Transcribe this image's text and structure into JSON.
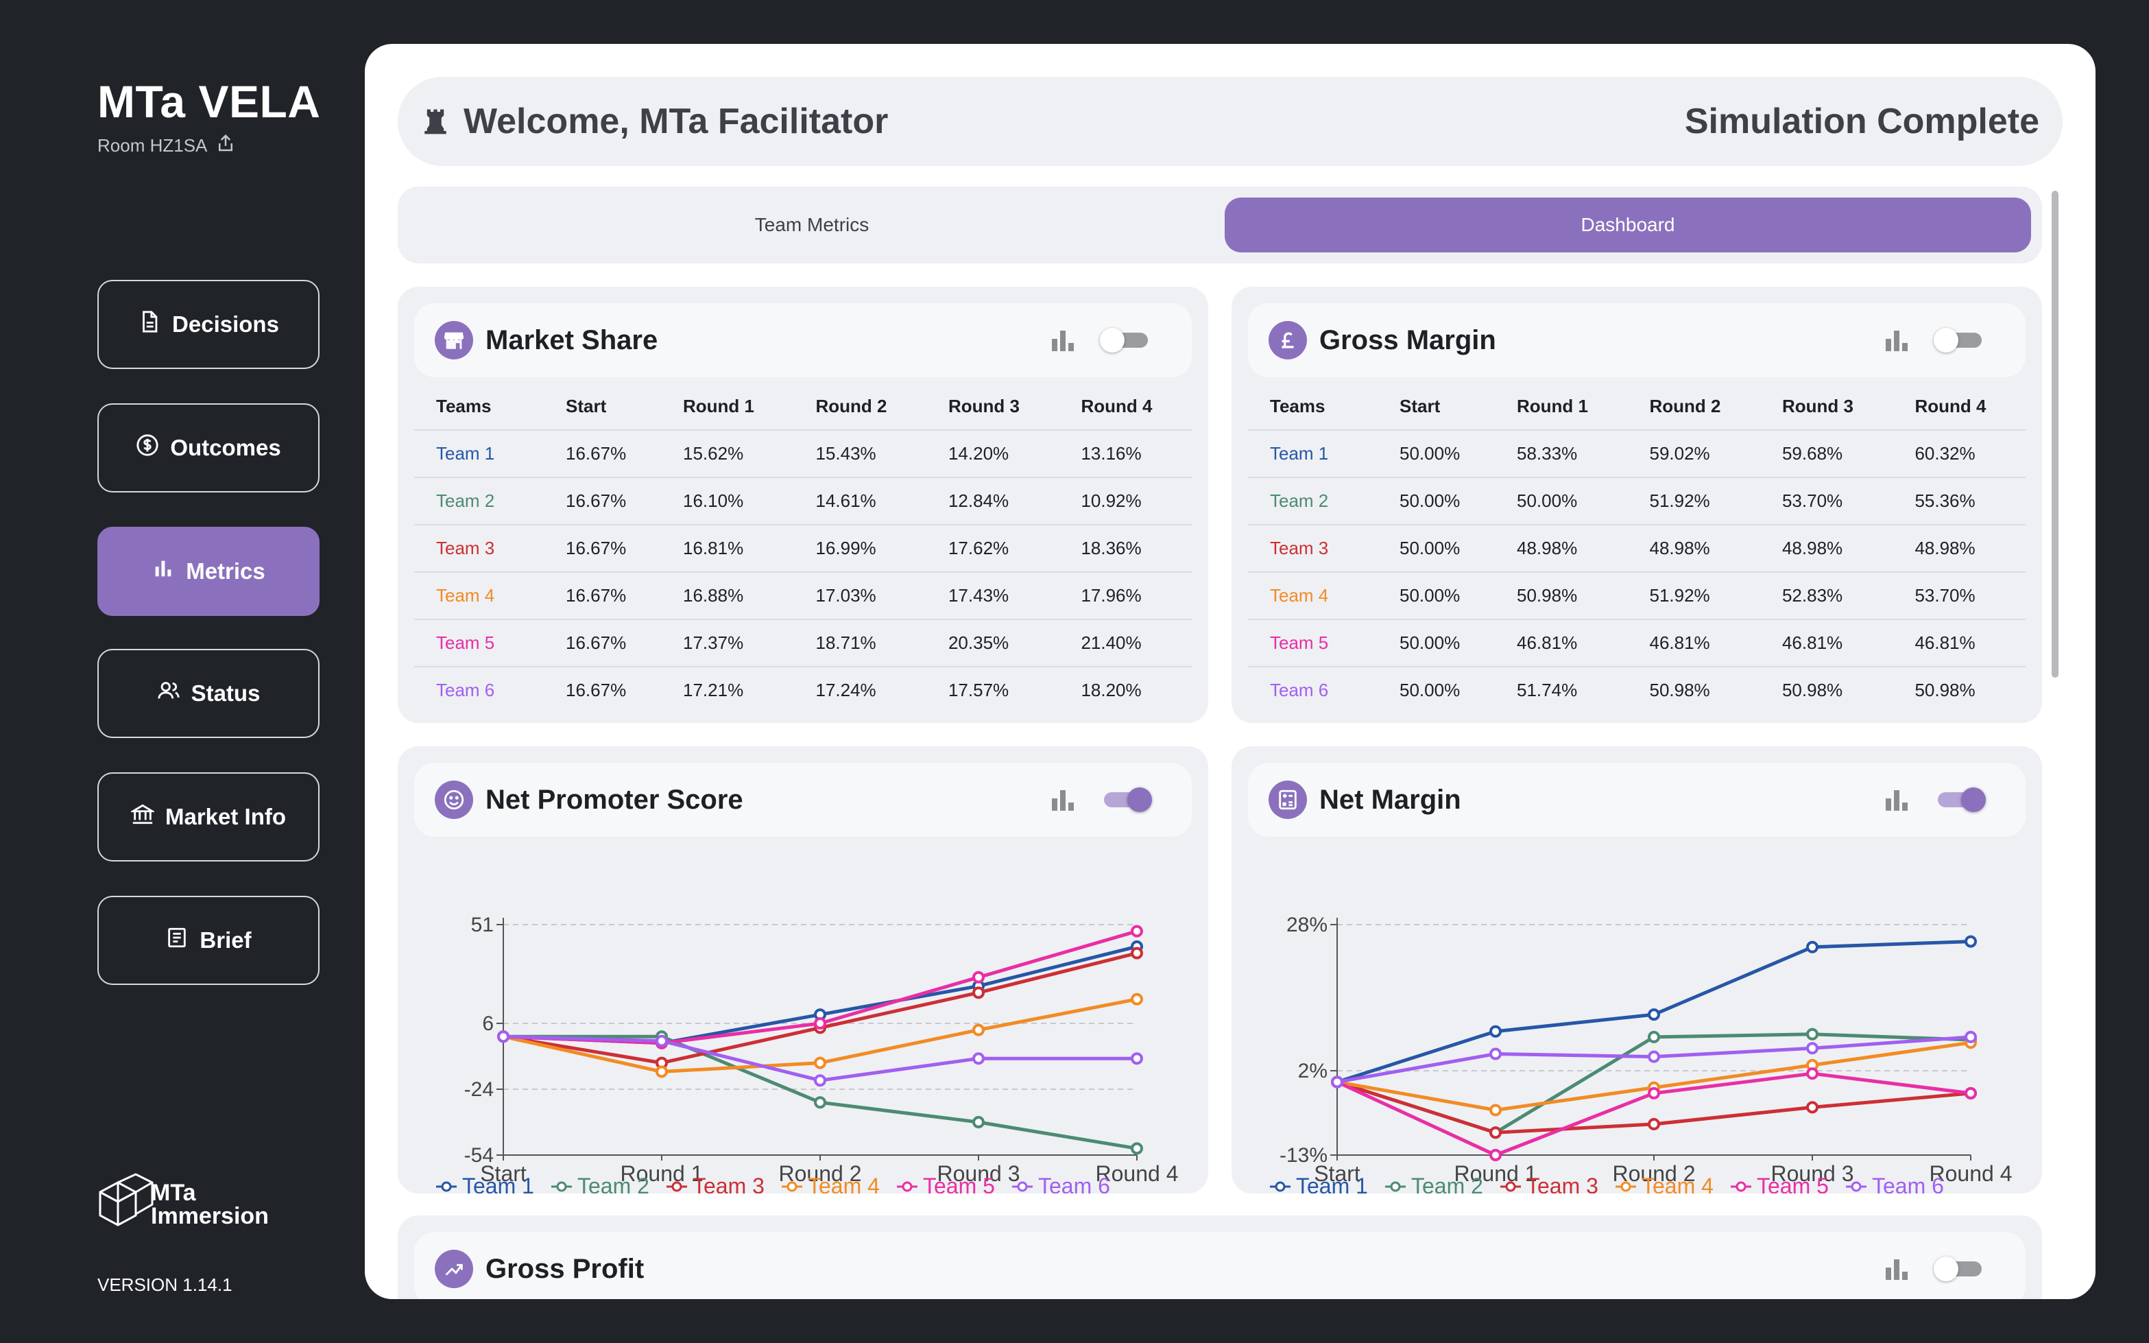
{
  "app": {
    "title": "MTa VELA",
    "room": "Room HZ1SA"
  },
  "sidebar": {
    "items": [
      {
        "label": "Decisions",
        "icon": "document-icon"
      },
      {
        "label": "Outcomes",
        "icon": "dollar-icon"
      },
      {
        "label": "Metrics",
        "icon": "bar-chart-icon",
        "active": true
      },
      {
        "label": "Status",
        "icon": "users-icon"
      },
      {
        "label": "Market Info",
        "icon": "bank-icon"
      },
      {
        "label": "Brief",
        "icon": "newspaper-icon"
      }
    ],
    "brand": "MTa Immersion",
    "brand_line1": "MTa",
    "brand_line2": "Immersion",
    "version": "VERSION 1.14.1"
  },
  "header": {
    "welcome": "Welcome, MTa Facilitator",
    "status": "Simulation Complete"
  },
  "tabs": [
    {
      "label": "Team Metrics"
    },
    {
      "label": "Dashboard",
      "active": true
    }
  ],
  "colors": {
    "accent": "#8b71bd",
    "team1": "#2756a6",
    "team2": "#4d8a73",
    "team3": "#cc2f35",
    "team4": "#f28b24",
    "team5": "#e92ea5",
    "team6": "#a15ff0"
  },
  "cards": {
    "market_share": {
      "title": "Market Share",
      "toggle_on": false,
      "columns": [
        "Teams",
        "Start",
        "Round 1",
        "Round 2",
        "Round 3",
        "Round 4"
      ],
      "rows": [
        [
          "Team 1",
          "16.67%",
          "15.62%",
          "15.43%",
          "14.20%",
          "13.16%"
        ],
        [
          "Team 2",
          "16.67%",
          "16.10%",
          "14.61%",
          "12.84%",
          "10.92%"
        ],
        [
          "Team 3",
          "16.67%",
          "16.81%",
          "16.99%",
          "17.62%",
          "18.36%"
        ],
        [
          "Team 4",
          "16.67%",
          "16.88%",
          "17.03%",
          "17.43%",
          "17.96%"
        ],
        [
          "Team 5",
          "16.67%",
          "17.37%",
          "18.71%",
          "20.35%",
          "21.40%"
        ],
        [
          "Team 6",
          "16.67%",
          "17.21%",
          "17.24%",
          "17.57%",
          "18.20%"
        ]
      ]
    },
    "gross_margin": {
      "title": "Gross Margin",
      "toggle_on": false,
      "columns": [
        "Teams",
        "Start",
        "Round 1",
        "Round 2",
        "Round 3",
        "Round 4"
      ],
      "rows": [
        [
          "Team 1",
          "50.00%",
          "58.33%",
          "59.02%",
          "59.68%",
          "60.32%"
        ],
        [
          "Team 2",
          "50.00%",
          "50.00%",
          "51.92%",
          "53.70%",
          "55.36%"
        ],
        [
          "Team 3",
          "50.00%",
          "48.98%",
          "48.98%",
          "48.98%",
          "48.98%"
        ],
        [
          "Team 4",
          "50.00%",
          "50.98%",
          "51.92%",
          "52.83%",
          "53.70%"
        ],
        [
          "Team 5",
          "50.00%",
          "46.81%",
          "46.81%",
          "46.81%",
          "46.81%"
        ],
        [
          "Team 6",
          "50.00%",
          "51.74%",
          "50.98%",
          "50.98%",
          "50.98%"
        ]
      ]
    },
    "net_promoter": {
      "title": "Net Promoter Score",
      "toggle_on": true
    },
    "net_margin": {
      "title": "Net Margin",
      "toggle_on": true
    },
    "gross_profit": {
      "title": "Gross Profit",
      "toggle_on": false
    }
  },
  "chart_data": [
    {
      "type": "line",
      "title": "Net Promoter Score",
      "categories": [
        "Start",
        "Round 1",
        "Round 2",
        "Round 3",
        "Round 4"
      ],
      "yticks": [
        "51",
        "6",
        "-24",
        "-54"
      ],
      "ytick_values": [
        51,
        6,
        -24,
        -54
      ],
      "ylim": [
        -54,
        51
      ],
      "grid": true,
      "legend": "bottom",
      "series": [
        {
          "name": "Team 1",
          "values": [
            0,
            -3,
            10,
            23,
            41
          ]
        },
        {
          "name": "Team 2",
          "values": [
            0,
            0,
            -30,
            -39,
            -51
          ]
        },
        {
          "name": "Team 3",
          "values": [
            0,
            -12,
            4,
            20,
            38
          ]
        },
        {
          "name": "Team 4",
          "values": [
            0,
            -16,
            -12,
            3,
            17
          ]
        },
        {
          "name": "Team 5",
          "values": [
            0,
            -3,
            6,
            27,
            48
          ]
        },
        {
          "name": "Team 6",
          "values": [
            0,
            -2,
            -20,
            -10,
            -10
          ]
        }
      ]
    },
    {
      "type": "line",
      "title": "Net Margin",
      "categories": [
        "Start",
        "Round 1",
        "Round 2",
        "Round 3",
        "Round 4"
      ],
      "yticks": [
        "28%",
        "2%",
        "-13%"
      ],
      "ytick_values": [
        28,
        2,
        -13
      ],
      "ylim": [
        -13,
        28
      ],
      "grid": true,
      "legend": "bottom",
      "series": [
        {
          "name": "Team 1",
          "values": [
            0,
            9,
            12,
            24,
            25
          ]
        },
        {
          "name": "Team 2",
          "values": [
            0,
            -9,
            8,
            8.5,
            7.5
          ]
        },
        {
          "name": "Team 3",
          "values": [
            0,
            -9,
            -7.5,
            -4.5,
            -2
          ]
        },
        {
          "name": "Team 4",
          "values": [
            0,
            -5,
            -1,
            3,
            7
          ]
        },
        {
          "name": "Team 5",
          "values": [
            0,
            -13,
            -2,
            1.5,
            -2
          ]
        },
        {
          "name": "Team 6",
          "values": [
            0,
            5,
            4.5,
            6,
            8
          ]
        }
      ]
    }
  ]
}
